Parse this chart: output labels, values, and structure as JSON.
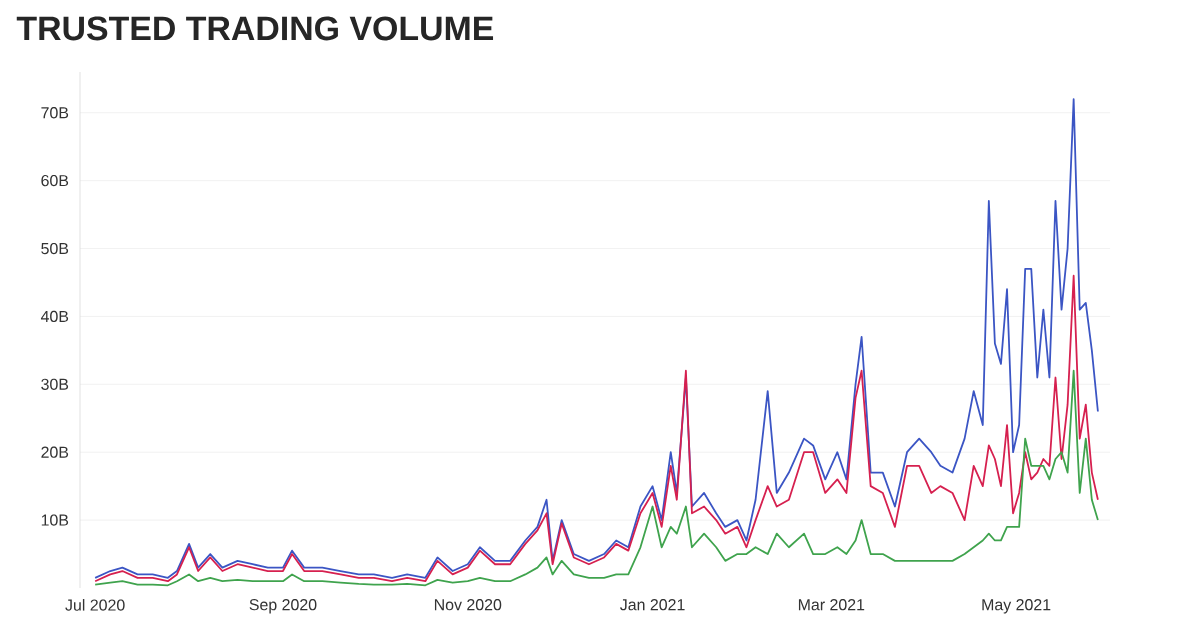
{
  "chart_data": {
    "type": "line",
    "title": "TRUSTED TRADING VOLUME",
    "x": [
      "2020-07-01",
      "2020-07-06",
      "2020-07-10",
      "2020-07-15",
      "2020-07-20",
      "2020-07-25",
      "2020-07-28",
      "2020-08-01",
      "2020-08-04",
      "2020-08-08",
      "2020-08-12",
      "2020-08-17",
      "2020-08-22",
      "2020-08-27",
      "2020-09-01",
      "2020-09-04",
      "2020-09-08",
      "2020-09-14",
      "2020-09-20",
      "2020-09-26",
      "2020-10-01",
      "2020-10-07",
      "2020-10-12",
      "2020-10-18",
      "2020-10-22",
      "2020-10-27",
      "2020-11-01",
      "2020-11-05",
      "2020-11-10",
      "2020-11-15",
      "2020-11-20",
      "2020-11-24",
      "2020-11-27",
      "2020-11-29",
      "2020-12-02",
      "2020-12-06",
      "2020-12-11",
      "2020-12-16",
      "2020-12-20",
      "2020-12-24",
      "2020-12-28",
      "2021-01-01",
      "2021-01-04",
      "2021-01-07",
      "2021-01-09",
      "2021-01-12",
      "2021-01-14",
      "2021-01-18",
      "2021-01-22",
      "2021-01-25",
      "2021-01-29",
      "2021-02-01",
      "2021-02-04",
      "2021-02-08",
      "2021-02-11",
      "2021-02-15",
      "2021-02-20",
      "2021-02-23",
      "2021-02-27",
      "2021-03-03",
      "2021-03-06",
      "2021-03-09",
      "2021-03-11",
      "2021-03-14",
      "2021-03-18",
      "2021-03-22",
      "2021-03-26",
      "2021-03-30",
      "2021-04-03",
      "2021-04-06",
      "2021-04-10",
      "2021-04-14",
      "2021-04-17",
      "2021-04-20",
      "2021-04-22",
      "2021-04-24",
      "2021-04-26",
      "2021-04-28",
      "2021-04-30",
      "2021-05-02",
      "2021-05-04",
      "2021-05-06",
      "2021-05-08",
      "2021-05-10",
      "2021-05-12",
      "2021-05-14",
      "2021-05-16",
      "2021-05-18",
      "2021-05-20",
      "2021-05-22",
      "2021-05-24",
      "2021-05-26",
      "2021-05-28"
    ],
    "series": [
      {
        "color": "#3b55c4",
        "values": [
          1.5,
          2.5,
          3,
          2,
          2,
          1.5,
          2.5,
          6.5,
          3,
          5,
          3,
          4,
          3.5,
          3,
          3,
          5.5,
          3,
          3,
          2.5,
          2,
          2,
          1.5,
          2,
          1.5,
          4.5,
          2.5,
          3.5,
          6,
          4,
          4,
          7,
          9,
          13,
          4,
          10,
          5,
          4,
          5,
          7,
          6,
          12,
          15,
          10,
          20,
          14,
          31,
          12,
          14,
          11,
          9,
          10,
          7,
          13,
          29,
          14,
          17,
          22,
          21,
          16,
          20,
          16,
          30,
          37,
          17,
          17,
          12,
          20,
          22,
          20,
          18,
          17,
          22,
          29,
          24,
          57,
          36,
          33,
          44,
          20,
          24,
          47,
          47,
          31,
          41,
          31,
          57,
          41,
          50,
          72,
          41,
          42,
          35,
          26
        ]
      },
      {
        "color": "#d6204f",
        "values": [
          1,
          2,
          2.5,
          1.5,
          1.5,
          1,
          2,
          6,
          2.5,
          4.5,
          2.5,
          3.5,
          3,
          2.5,
          2.5,
          5,
          2.5,
          2.5,
          2,
          1.5,
          1.5,
          1,
          1.5,
          1,
          4,
          2,
          3,
          5.5,
          3.5,
          3.5,
          6.5,
          8.5,
          11,
          3.5,
          9.5,
          4.5,
          3.5,
          4.5,
          6.5,
          5.5,
          11,
          14,
          9,
          18,
          13,
          32,
          11,
          12,
          10,
          8,
          9,
          6,
          10,
          15,
          12,
          13,
          20,
          20,
          14,
          16,
          14,
          28,
          32,
          15,
          14,
          9,
          18,
          18,
          14,
          15,
          14,
          10,
          18,
          15,
          21,
          19,
          15,
          24,
          11,
          14,
          20,
          16,
          17,
          19,
          18,
          31,
          19,
          27,
          46,
          22,
          27,
          17,
          13
        ]
      },
      {
        "color": "#3fa34d",
        "values": [
          0.5,
          0.8,
          1,
          0.5,
          0.5,
          0.4,
          1,
          2,
          1,
          1.5,
          1,
          1.2,
          1,
          1,
          1,
          2,
          1,
          1,
          0.8,
          0.6,
          0.5,
          0.5,
          0.6,
          0.4,
          1.2,
          0.8,
          1,
          1.5,
          1,
          1,
          2,
          3,
          4.5,
          2,
          4,
          2,
          1.5,
          1.5,
          2,
          2,
          6,
          12,
          6,
          9,
          8,
          12,
          6,
          8,
          6,
          4,
          5,
          5,
          6,
          5,
          8,
          6,
          8,
          5,
          5,
          6,
          5,
          7,
          10,
          5,
          5,
          4,
          4,
          4,
          4,
          4,
          4,
          5,
          6,
          7,
          8,
          7,
          7,
          9,
          9,
          9,
          22,
          18,
          18,
          18,
          16,
          19,
          20,
          17,
          32,
          14,
          22,
          13,
          10
        ]
      }
    ],
    "xlim": [
      "2020-06-26",
      "2021-06-01"
    ],
    "xticks": [
      {
        "value": "2020-07-01",
        "label": "Jul 2020"
      },
      {
        "value": "2020-09-01",
        "label": "Sep 2020"
      },
      {
        "value": "2020-11-01",
        "label": "Nov 2020"
      },
      {
        "value": "2021-01-01",
        "label": "Jan 2021"
      },
      {
        "value": "2021-03-01",
        "label": "Mar 2021"
      },
      {
        "value": "2021-05-01",
        "label": "May 2021"
      }
    ],
    "ylim": [
      0,
      76
    ],
    "yticks": [
      {
        "value": 10,
        "label": "10B"
      },
      {
        "value": 20,
        "label": "20B"
      },
      {
        "value": 30,
        "label": "30B"
      },
      {
        "value": 40,
        "label": "40B"
      },
      {
        "value": 50,
        "label": "50B"
      },
      {
        "value": 60,
        "label": "60B"
      },
      {
        "value": 70,
        "label": "70B"
      }
    ],
    "grid": "y",
    "marker": "none",
    "line_style": "solid"
  }
}
